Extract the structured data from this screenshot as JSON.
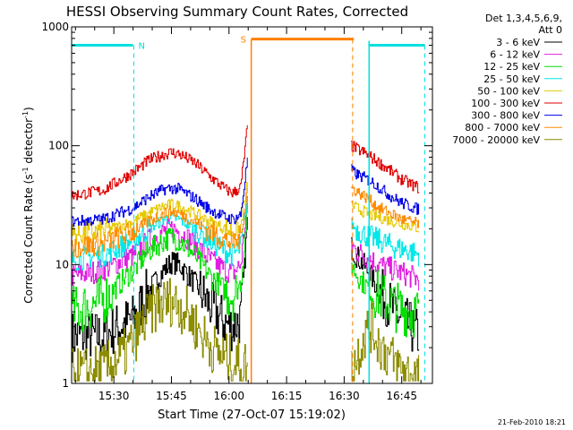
{
  "chart_data": {
    "type": "line",
    "title": "HESSI Observing Summary Count Rates, Corrected",
    "ylabel_main": "Corrected Count Rate (s",
    "ylabel_sup1": "-1",
    "ylabel_mid": " detector",
    "ylabel_sup2": "-1",
    "ylabel_end": ")",
    "xlabel": "Start Time (27-Oct-07 15:19:02)",
    "x_unit": "minutes after 15:19:02 UT",
    "xlim": [
      0,
      94
    ],
    "ylim": [
      1,
      1000
    ],
    "yscale": "log",
    "x_ticks": [
      {
        "value": 11,
        "label": "15:30"
      },
      {
        "value": 26,
        "label": "15:45"
      },
      {
        "value": 41,
        "label": "16:00"
      },
      {
        "value": 56,
        "label": "16:15"
      },
      {
        "value": 71,
        "label": "16:30"
      },
      {
        "value": 86,
        "label": "16:45"
      }
    ],
    "y_ticks": [
      {
        "value": 1,
        "label": "1"
      },
      {
        "value": 10,
        "label": "10"
      },
      {
        "value": 100,
        "label": "100"
      },
      {
        "value": 1000,
        "label": "1000"
      }
    ],
    "legend_header": [
      "Det 1,3,4,5,6,9,",
      "Att 0"
    ],
    "legend_position": "right",
    "segments": [
      [
        0,
        45.8
      ],
      [
        72.8,
        90.5
      ]
    ],
    "series": [
      {
        "name": "3 - 6 keV",
        "color": "#000000",
        "x": [
          0,
          8,
          16,
          20,
          24,
          26,
          28,
          32,
          36,
          40,
          42,
          44,
          45.8,
          72.8,
          74,
          76,
          78,
          80,
          82,
          84,
          86,
          88,
          90.5
        ],
        "y": [
          2.5,
          2.5,
          3.5,
          6,
          9,
          10.5,
          10,
          7,
          4.5,
          3.2,
          3,
          3.5,
          25,
          14,
          12,
          10,
          8,
          6,
          5,
          4,
          3.5,
          3,
          2.5
        ]
      },
      {
        "name": "6 - 12 keV",
        "color": "#e01ee0",
        "x": [
          0,
          8,
          16,
          20,
          24,
          26,
          28,
          32,
          36,
          40,
          42,
          44,
          45.8,
          72.8,
          74,
          76,
          78,
          80,
          82,
          84,
          86,
          88,
          90.5
        ],
        "y": [
          8,
          9,
          12,
          16,
          19,
          20,
          19,
          15,
          11,
          9,
          8.5,
          10,
          35,
          15,
          13,
          12,
          11,
          10,
          9.5,
          9,
          8.5,
          8,
          7.5
        ]
      },
      {
        "name": "12 - 25 keV",
        "color": "#00e000",
        "x": [
          0,
          8,
          16,
          20,
          24,
          26,
          28,
          32,
          36,
          40,
          42,
          44,
          45.8,
          72.8,
          74,
          76,
          78,
          80,
          82,
          84,
          86,
          88,
          90.5
        ],
        "y": [
          4,
          5,
          9,
          13,
          16,
          17,
          16,
          12,
          8,
          6,
          5.5,
          7,
          30,
          10,
          8.5,
          7,
          6,
          5.5,
          5,
          4.5,
          4.2,
          4,
          4
        ]
      },
      {
        "name": "25 - 50 keV",
        "color": "#00e8e8",
        "x": [
          0,
          8,
          16,
          20,
          24,
          26,
          28,
          32,
          36,
          40,
          42,
          44,
          45.8,
          72.8,
          74,
          76,
          78,
          80,
          82,
          84,
          86,
          88,
          90.5
        ],
        "y": [
          11,
          12,
          16,
          20,
          24,
          25,
          24,
          20,
          16,
          13,
          12,
          14,
          38,
          22,
          20,
          18,
          17,
          16,
          15,
          14,
          13.5,
          13,
          12
        ]
      },
      {
        "name": "50 - 100 keV",
        "color": "#e6c800",
        "x": [
          0,
          8,
          16,
          20,
          24,
          26,
          28,
          32,
          36,
          40,
          42,
          44,
          45.8,
          72.8,
          74,
          76,
          78,
          80,
          82,
          84,
          86,
          88,
          90.5
        ],
        "y": [
          18,
          19,
          23,
          27,
          31,
          32,
          31,
          27,
          23,
          20,
          19,
          21,
          50,
          32,
          30,
          28,
          26,
          25,
          24,
          23,
          22,
          21.5,
          20
        ]
      },
      {
        "name": "100 - 300 keV",
        "color": "#e00000",
        "x": [
          0,
          8,
          16,
          20,
          24,
          26,
          28,
          32,
          36,
          40,
          42,
          44,
          45.8,
          72.8,
          74,
          76,
          78,
          80,
          82,
          84,
          86,
          88,
          90.5
        ],
        "y": [
          38,
          42,
          60,
          75,
          85,
          88,
          85,
          72,
          55,
          43,
          40,
          45,
          150,
          100,
          95,
          88,
          80,
          72,
          65,
          58,
          52,
          48,
          44
        ]
      },
      {
        "name": "300 - 800 keV",
        "color": "#0000e6",
        "x": [
          0,
          8,
          16,
          20,
          24,
          26,
          28,
          32,
          36,
          40,
          42,
          44,
          45.8,
          72.8,
          74,
          76,
          78,
          80,
          82,
          84,
          86,
          88,
          90.5
        ],
        "y": [
          23,
          24,
          30,
          37,
          43,
          44,
          43,
          36,
          29,
          25,
          24,
          26,
          80,
          62,
          58,
          54,
          50,
          45,
          40,
          36,
          33,
          31,
          29
        ]
      },
      {
        "name": "800 - 7000 keV",
        "color": "#ff8c00",
        "x": [
          0,
          8,
          16,
          20,
          24,
          26,
          28,
          32,
          36,
          40,
          42,
          44,
          45.8,
          72.8,
          74,
          76,
          78,
          80,
          82,
          84,
          86,
          88,
          90.5
        ],
        "y": [
          14,
          15,
          19,
          23,
          27,
          28,
          27,
          23,
          19,
          16,
          15,
          17,
          45,
          44,
          42,
          38,
          34,
          30,
          28,
          26,
          24,
          23,
          22
        ]
      },
      {
        "name": "7000 - 20000 keV",
        "color": "#8c8c00",
        "x": [
          0,
          8,
          14,
          18,
          22,
          26,
          30,
          34,
          38,
          42,
          45.8,
          72.8,
          74,
          76,
          78,
          80,
          82,
          84,
          86,
          88,
          90.5
        ],
        "y": [
          1.2,
          1.3,
          1.8,
          3,
          4.5,
          5,
          4,
          2.5,
          1.8,
          1.5,
          1.4,
          1.3,
          1.6,
          2.5,
          3,
          2.2,
          1.8,
          1.5,
          1.3,
          1.2,
          1.1
        ]
      }
    ],
    "annotations": {
      "n_label": "N",
      "s_label": "S",
      "saa_color": "#ff7f00",
      "night_color": "#00e0e0",
      "n_bar_x": [
        0,
        16
      ],
      "n_bar_end_line_x": 16.2,
      "night_bar2_x": [
        77.3,
        92
      ],
      "night_solid_x": 77.5,
      "night_dashed_x": 92,
      "s_bar_x": [
        46.8,
        73.5
      ],
      "s_solid_x": 46.8,
      "s_dashed_x": 73.2,
      "bar_y": 700,
      "s_bar_y": 790
    }
  },
  "footer_date": "21-Feb-2010 18:21"
}
